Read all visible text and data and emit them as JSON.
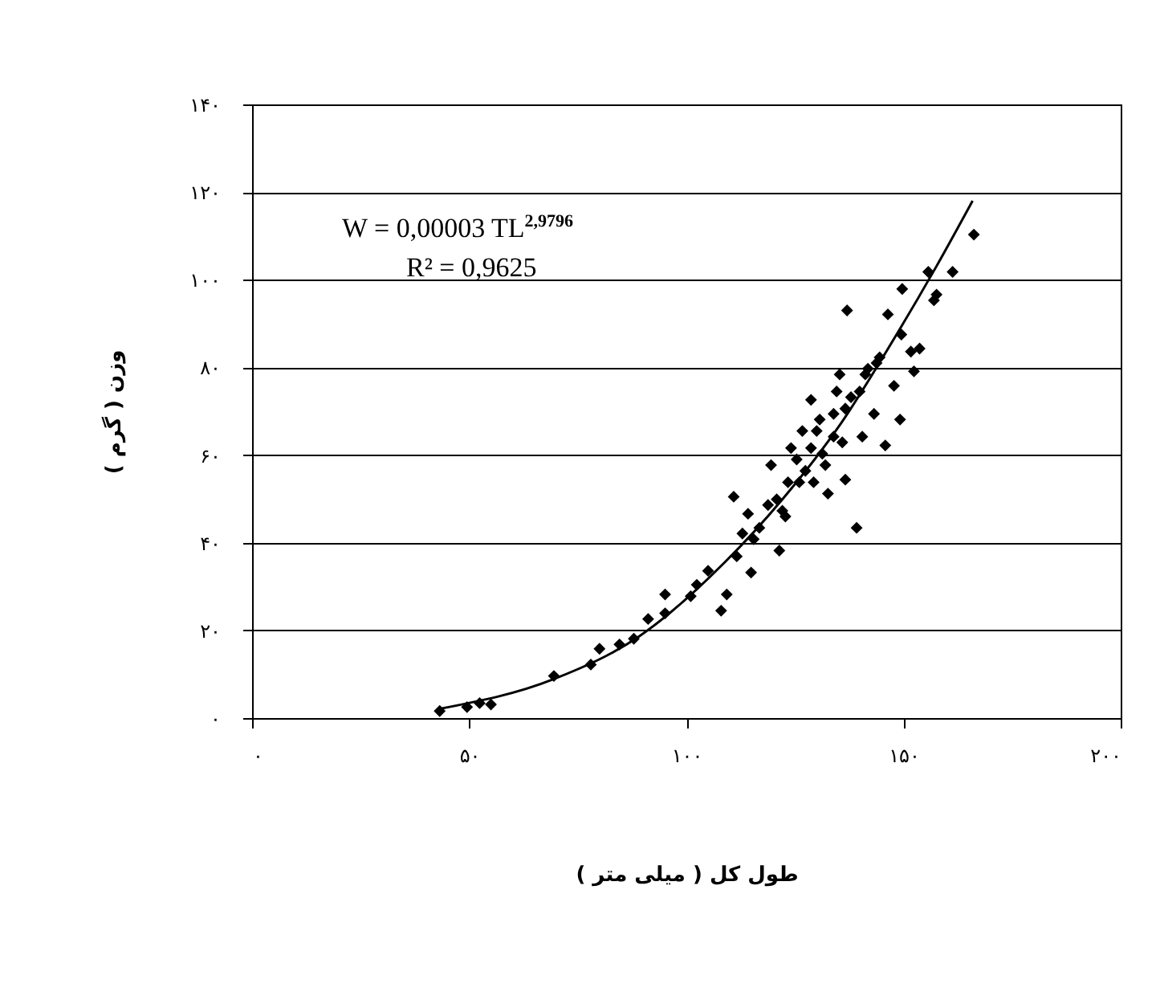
{
  "chart_data": {
    "type": "scatter",
    "xlabel": "طول کل ( میلی متر )",
    "ylabel": "وزن ( گرم )",
    "annotations": [
      "W = 0,00003 TL$^{2,9796}$",
      "R² = 0,9625"
    ],
    "xlim": [
      0,
      200
    ],
    "xticks": [
      {
        "value": 0,
        "label": "۰"
      },
      {
        "value": 50,
        "label": "۵۰"
      },
      {
        "value": 100,
        "label": "۱۰۰"
      },
      {
        "value": 150,
        "label": "۱۵۰"
      },
      {
        "value": 200,
        "label": "۲۰۰"
      }
    ],
    "ylim": [
      0,
      140
    ],
    "yticks": [
      {
        "value": 0,
        "label": "۰"
      },
      {
        "value": 20,
        "label": "۲۰"
      },
      {
        "value": 40,
        "label": "۴۰"
      },
      {
        "value": 60,
        "label": "۶۰"
      },
      {
        "value": 80,
        "label": "۸۰"
      },
      {
        "value": 100,
        "label": "۱۰۰"
      },
      {
        "value": 120,
        "label": "۱۲۰"
      },
      {
        "value": 140,
        "label": "۱۴۰"
      }
    ],
    "grid": "y",
    "marker": "diamond",
    "series": [
      {
        "color": "#000000",
        "x": [
          43.2,
          49.5,
          52.4,
          55,
          69.5,
          78,
          80,
          84.6,
          87.9,
          91.2,
          95.1,
          95.1,
          101,
          105,
          102.4,
          108,
          109.3,
          110.9,
          114.9,
          111.6,
          112.9,
          114.2,
          116.8,
          118.8,
          119.5,
          121.4,
          122.8,
          124.1,
          126,
          127.4,
          128.7,
          130,
          131.3,
          132.6,
          133.9,
          135.3,
          135.9,
          136.6,
          137,
          139.2,
          139.9,
          140.5,
          141.8,
          143.2,
          144.5,
          145.8,
          146.4,
          147.8,
          149.2,
          149.5,
          149.7,
          151.7,
          152.4,
          153.7,
          155.7,
          157,
          157.6,
          161.3,
          166.2,
          128.7,
          130.7,
          133.9,
          123.4,
          120.8,
          115.5,
          126.7,
          137.9,
          136.6,
          125.4,
          132,
          129.3,
          122.1,
          141.2,
          143.8,
          134.6
        ],
        "values": [
          1.6,
          2.5,
          3.4,
          3.1,
          9.6,
          12.2,
          15.8,
          16.8,
          18.1,
          22.6,
          28.2,
          23.9,
          27.8,
          33.6,
          30.4,
          24.5,
          28.2,
          50.5,
          33.2,
          36.9,
          42.1,
          46.6,
          43.4,
          48.6,
          57.7,
          38.2,
          46,
          61.6,
          53.8,
          56.4,
          72.6,
          65.5,
          60.3,
          51.2,
          69.4,
          78.4,
          62.9,
          54.4,
          93,
          43.4,
          74.5,
          64.2,
          79.7,
          69.4,
          82.3,
          62.2,
          92.1,
          75.8,
          68.1,
          87.5,
          97.9,
          83.6,
          79.1,
          84.3,
          101.8,
          95.3,
          96.6,
          101.8,
          110.3,
          61.6,
          68.1,
          64.2,
          53.8,
          49.9,
          40.8,
          65.5,
          73.2,
          70.6,
          59,
          57.7,
          53.8,
          47.3,
          78.4,
          81,
          74.5
        ]
      },
      {
        "type": "line",
        "marker": "none",
        "color": "#000000",
        "x": [
          43.2,
          69.5,
          89.2,
          108.9,
          122.1,
          135.3,
          148.4,
          157.6,
          165.9
        ],
        "values": [
          2.1,
          8.9,
          18.7,
          35.6,
          49.9,
          66.8,
          87.5,
          103.1,
          118
        ]
      }
    ]
  }
}
